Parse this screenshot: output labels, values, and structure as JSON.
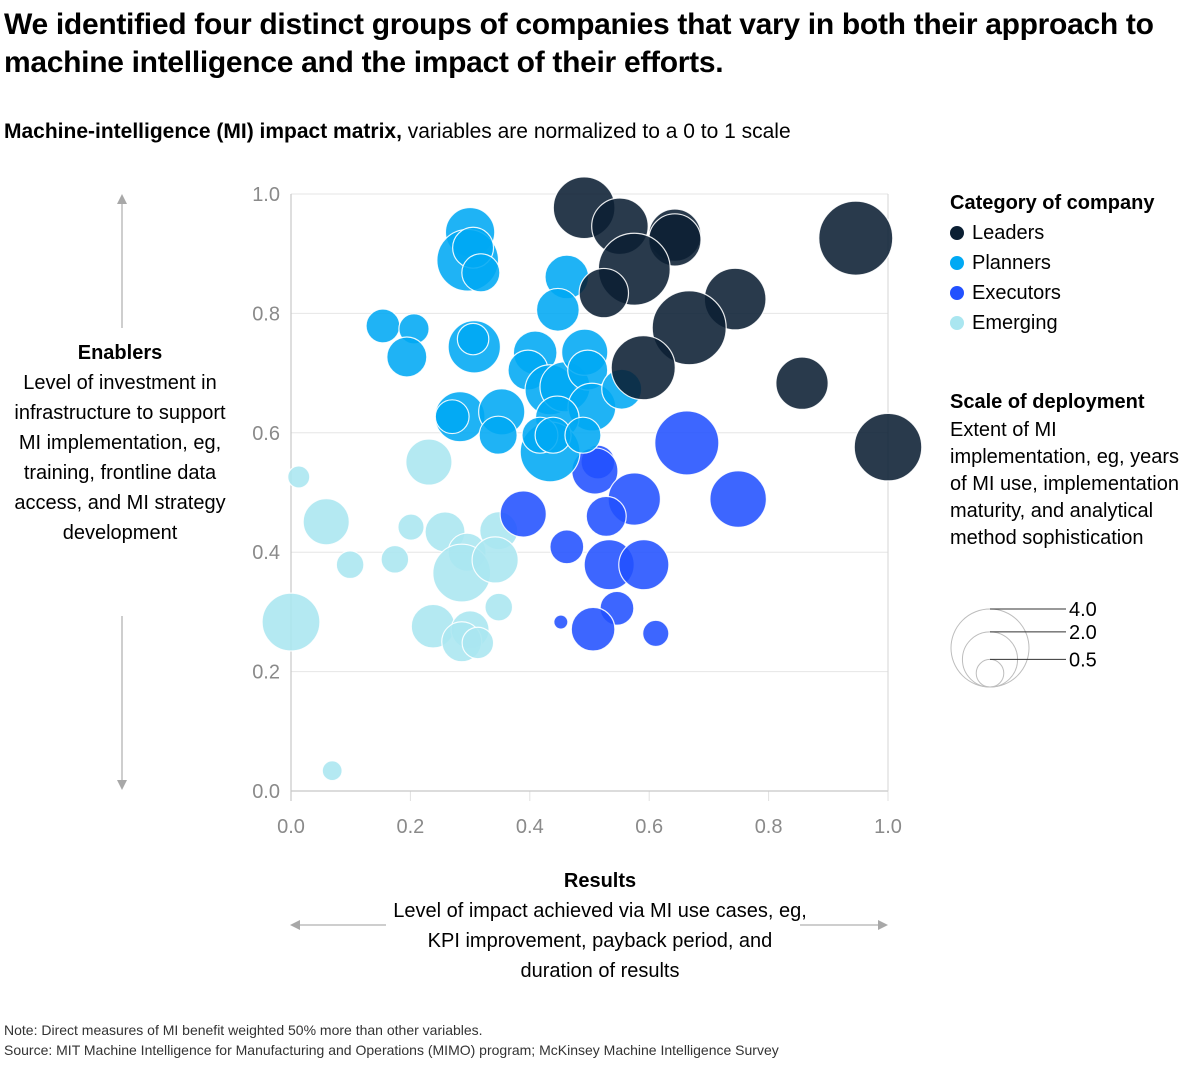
{
  "header": {
    "title": "We identified four distinct groups of companies that vary in both their approach to machine intelligence and the impact of their efforts.",
    "subtitle_bold": "Machine-intelligence (MI) impact matrix,",
    "subtitle_rest": " variables are normalized to a 0 to 1 scale"
  },
  "y_axis": {
    "heading": "Enablers",
    "description": "Level of investment in infrastructure to support MI implementation, eg, training, frontline data access, and MI strategy development"
  },
  "x_axis": {
    "heading": "Results",
    "description": "Level of impact achieved via MI use cases, eg, KPI improvement, payback period, and duration of results"
  },
  "legend": {
    "heading": "Category of company",
    "items": [
      {
        "label": "Leaders",
        "color": "#0b1f33"
      },
      {
        "label": "Planners",
        "color": "#00a9f4"
      },
      {
        "label": "Executors",
        "color": "#2251ff"
      },
      {
        "label": "Emerging",
        "color": "#aae6f0"
      }
    ]
  },
  "size_legend": {
    "heading": "Scale of deployment",
    "description": "Extent of MI implementation, eg, years of MI use, implementation maturity, and analytical method sophistication",
    "values": [
      4.0,
      2.0,
      0.5
    ],
    "labels": [
      "4.0",
      "2.0",
      "0.5"
    ]
  },
  "footer": {
    "note": "Note: Direct measures of MI benefit weighted 50% more than other variables.",
    "source": "Source: MIT Machine Intelligence for Manufacturing and Operations (MIMO) program; McKinsey Machine Intelligence Survey"
  },
  "chart_data": {
    "type": "scatter",
    "subtype": "bubble",
    "title": "Machine-intelligence (MI) impact matrix",
    "xlabel": "Results",
    "ylabel": "Enablers",
    "xlim": [
      0,
      1
    ],
    "ylim": [
      0,
      1
    ],
    "x_ticks": [
      "0.0",
      "0.2",
      "0.4",
      "0.6",
      "0.8",
      "1.0"
    ],
    "y_ticks": [
      "0.0",
      "0.2",
      "0.4",
      "0.6",
      "0.8",
      "1.0"
    ],
    "grid": true,
    "legend_position": "right",
    "size_variable": "Scale of deployment",
    "series": [
      {
        "name": "Leaders",
        "color": "#0b1f33",
        "points": [
          {
            "x": 0.491,
            "y": 0.977,
            "size": 2.5
          },
          {
            "x": 0.551,
            "y": 0.946,
            "size": 2.1
          },
          {
            "x": 0.643,
            "y": 0.931,
            "size": 1.8
          },
          {
            "x": 0.643,
            "y": 0.923,
            "size": 1.8
          },
          {
            "x": 0.575,
            "y": 0.874,
            "size": 3.4
          },
          {
            "x": 0.524,
            "y": 0.834,
            "size": 1.6
          },
          {
            "x": 0.744,
            "y": 0.824,
            "size": 2.5
          },
          {
            "x": 0.667,
            "y": 0.776,
            "size": 3.6
          },
          {
            "x": 0.59,
            "y": 0.709,
            "size": 2.7
          },
          {
            "x": 0.946,
            "y": 0.926,
            "size": 3.6
          },
          {
            "x": 0.856,
            "y": 0.683,
            "size": 1.8
          },
          {
            "x": 1.0,
            "y": 0.576,
            "size": 3.0
          }
        ]
      },
      {
        "name": "Planners",
        "color": "#00a9f4",
        "points": [
          {
            "x": 0.3,
            "y": 0.936,
            "size": 1.6
          },
          {
            "x": 0.296,
            "y": 0.889,
            "size": 2.5
          },
          {
            "x": 0.305,
            "y": 0.91,
            "size": 1.1
          },
          {
            "x": 0.318,
            "y": 0.868,
            "size": 0.95
          },
          {
            "x": 0.154,
            "y": 0.779,
            "size": 0.75
          },
          {
            "x": 0.206,
            "y": 0.774,
            "size": 0.6
          },
          {
            "x": 0.194,
            "y": 0.727,
            "size": 1.05
          },
          {
            "x": 0.307,
            "y": 0.744,
            "size": 1.8
          },
          {
            "x": 0.305,
            "y": 0.757,
            "size": 0.65
          },
          {
            "x": 0.462,
            "y": 0.861,
            "size": 1.25
          },
          {
            "x": 0.447,
            "y": 0.806,
            "size": 1.2
          },
          {
            "x": 0.409,
            "y": 0.734,
            "size": 1.25
          },
          {
            "x": 0.397,
            "y": 0.705,
            "size": 1.05
          },
          {
            "x": 0.434,
            "y": 0.672,
            "size": 1.65
          },
          {
            "x": 0.459,
            "y": 0.677,
            "size": 1.65
          },
          {
            "x": 0.492,
            "y": 0.735,
            "size": 1.4
          },
          {
            "x": 0.497,
            "y": 0.705,
            "size": 1.05
          },
          {
            "x": 0.504,
            "y": 0.643,
            "size": 1.5
          },
          {
            "x": 0.554,
            "y": 0.673,
            "size": 1.05
          },
          {
            "x": 0.283,
            "y": 0.627,
            "size": 1.65
          },
          {
            "x": 0.27,
            "y": 0.627,
            "size": 0.75
          },
          {
            "x": 0.353,
            "y": 0.635,
            "size": 1.4
          },
          {
            "x": 0.347,
            "y": 0.596,
            "size": 0.95
          },
          {
            "x": 0.446,
            "y": 0.625,
            "size": 1.25
          },
          {
            "x": 0.434,
            "y": 0.568,
            "size": 2.35
          },
          {
            "x": 0.417,
            "y": 0.596,
            "size": 0.85
          },
          {
            "x": 0.439,
            "y": 0.596,
            "size": 0.85
          },
          {
            "x": 0.489,
            "y": 0.596,
            "size": 0.85
          }
        ]
      },
      {
        "name": "Executors",
        "color": "#2251ff",
        "points": [
          {
            "x": 0.663,
            "y": 0.583,
            "size": 2.7
          },
          {
            "x": 0.749,
            "y": 0.489,
            "size": 2.1
          },
          {
            "x": 0.514,
            "y": 0.551,
            "size": 0.75
          },
          {
            "x": 0.509,
            "y": 0.536,
            "size": 1.4
          },
          {
            "x": 0.575,
            "y": 0.489,
            "size": 1.8
          },
          {
            "x": 0.528,
            "y": 0.46,
            "size": 1.05
          },
          {
            "x": 0.389,
            "y": 0.464,
            "size": 1.4
          },
          {
            "x": 0.462,
            "y": 0.409,
            "size": 0.75
          },
          {
            "x": 0.533,
            "y": 0.379,
            "size": 1.65
          },
          {
            "x": 0.591,
            "y": 0.379,
            "size": 1.65
          },
          {
            "x": 0.546,
            "y": 0.306,
            "size": 0.75
          },
          {
            "x": 0.506,
            "y": 0.271,
            "size": 1.25
          },
          {
            "x": 0.452,
            "y": 0.283,
            "size": 0.13
          },
          {
            "x": 0.611,
            "y": 0.264,
            "size": 0.45
          }
        ]
      },
      {
        "name": "Emerging",
        "color": "#aae6f0",
        "points": [
          {
            "x": 0.013,
            "y": 0.526,
            "size": 0.32
          },
          {
            "x": 0.231,
            "y": 0.551,
            "size": 1.4
          },
          {
            "x": 0.059,
            "y": 0.451,
            "size": 1.4
          },
          {
            "x": 0.201,
            "y": 0.442,
            "size": 0.45
          },
          {
            "x": 0.099,
            "y": 0.379,
            "size": 0.5
          },
          {
            "x": 0.174,
            "y": 0.388,
            "size": 0.5
          },
          {
            "x": 0.258,
            "y": 0.434,
            "size": 1.05
          },
          {
            "x": 0.295,
            "y": 0.4,
            "size": 0.95
          },
          {
            "x": 0.348,
            "y": 0.436,
            "size": 0.95
          },
          {
            "x": 0.0,
            "y": 0.283,
            "size": 2.2
          },
          {
            "x": 0.286,
            "y": 0.365,
            "size": 2.2
          },
          {
            "x": 0.342,
            "y": 0.387,
            "size": 1.4
          },
          {
            "x": 0.348,
            "y": 0.308,
            "size": 0.5
          },
          {
            "x": 0.238,
            "y": 0.276,
            "size": 1.25
          },
          {
            "x": 0.3,
            "y": 0.27,
            "size": 0.95
          },
          {
            "x": 0.286,
            "y": 0.25,
            "size": 1.05
          },
          {
            "x": 0.313,
            "y": 0.248,
            "size": 0.65
          },
          {
            "x": 0.069,
            "y": 0.034,
            "size": 0.26
          }
        ]
      }
    ]
  }
}
